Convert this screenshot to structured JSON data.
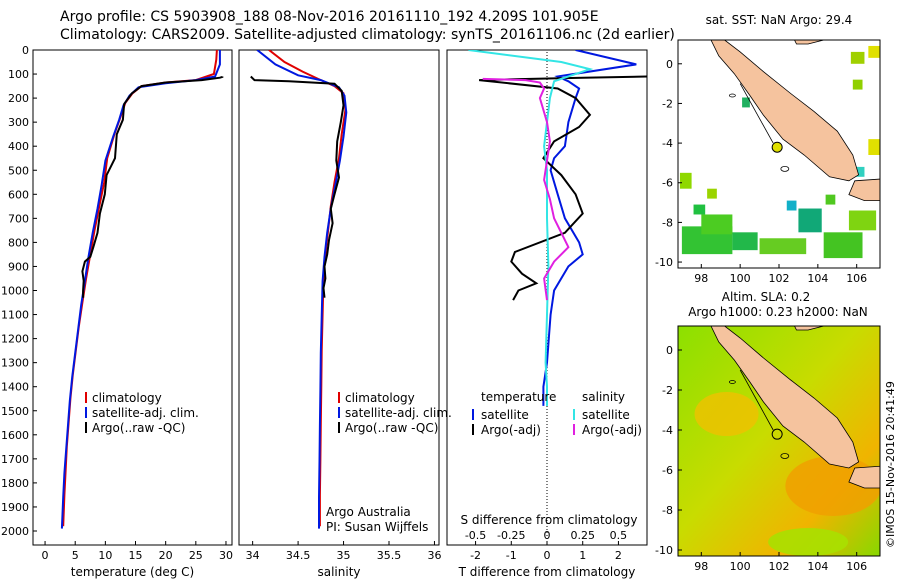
{
  "header": {
    "line1": "Argo profile: CS 5903908_188 08-Nov-2016 20161110_192 4.209S 101.905E",
    "line2": "Climatology: CARS2009. Satellite-adjusted climatology: synTS_20161106.nc (2d earlier)"
  },
  "colors": {
    "climatology": "#e00000",
    "satellite": "#0018e0",
    "argo": "#000000",
    "sal_satellite": "#33e5e5",
    "sal_argo": "#e020e0"
  },
  "chart_data": [
    {
      "type": "line",
      "id": "temperature",
      "xlabel": "temperature (deg C)",
      "ylabel": "",
      "xlim": [
        -2,
        31
      ],
      "ylim": [
        2070,
        0
      ],
      "y_inverted": true,
      "xticks": [
        0,
        5,
        10,
        15,
        20,
        25,
        30
      ],
      "yticks": [
        0,
        100,
        200,
        300,
        400,
        500,
        600,
        700,
        800,
        900,
        1000,
        1100,
        1200,
        1300,
        1400,
        1500,
        1600,
        1700,
        1800,
        1900,
        2000
      ],
      "legend": {
        "placement": "lower-left",
        "entries": [
          "climatology",
          "satellite-adj. clim.",
          "Argo(..raw -QC)"
        ]
      },
      "series": [
        {
          "name": "climatology",
          "color": "#e00000",
          "x": [
            28.5,
            28.4,
            28,
            25,
            20,
            16,
            14.5,
            13.3,
            12.5,
            11.5,
            10.3,
            9.8,
            9.0,
            8.2,
            7.5,
            6.8,
            6.2,
            5.6,
            5.1,
            4.6,
            4.2,
            3.9,
            3.6,
            3.4,
            3.2,
            3.0
          ],
          "y": [
            0,
            40,
            100,
            125,
            135,
            150,
            180,
            220,
            280,
            350,
            450,
            550,
            650,
            750,
            850,
            950,
            1050,
            1150,
            1250,
            1350,
            1450,
            1550,
            1650,
            1750,
            1850,
            1980
          ]
        },
        {
          "name": "satellite-adj. clim.",
          "color": "#0018e0",
          "x": [
            29.0,
            29.0,
            28.2,
            25,
            20,
            15.5,
            14.0,
            13.0,
            12.3,
            11.3,
            10.0,
            9.4,
            8.7,
            7.9,
            7.2,
            6.6,
            6.0,
            5.5,
            5.0,
            4.5,
            4.1,
            3.8,
            3.5,
            3.2,
            3.0,
            2.8
          ],
          "y": [
            0,
            60,
            110,
            125,
            138,
            155,
            190,
            230,
            290,
            360,
            460,
            560,
            660,
            760,
            860,
            960,
            1060,
            1160,
            1260,
            1360,
            1460,
            1560,
            1660,
            1760,
            1860,
            1990
          ]
        },
        {
          "name": "Argo(..raw -QC)",
          "color": "#000000",
          "x": [
            29.4,
            29.4,
            29.0,
            26,
            20,
            16,
            14.4,
            13.1,
            12.9,
            11.9,
            11.6,
            10.2,
            9.9,
            9.1,
            8.7,
            8.0,
            7.5,
            6.6,
            6.2,
            6.4,
            6.3,
            6.3
          ],
          "y": [
            110,
            112,
            115,
            125,
            135,
            150,
            180,
            225,
            290,
            350,
            450,
            520,
            600,
            680,
            760,
            820,
            860,
            880,
            920,
            960,
            1000,
            1030
          ]
        }
      ]
    },
    {
      "type": "line",
      "id": "salinity",
      "xlabel": "salinity",
      "ylabel": "",
      "xlim": [
        33.85,
        36.05
      ],
      "ylim": [
        2070,
        0
      ],
      "y_inverted": true,
      "xticks": [
        34,
        34.5,
        35,
        35.5,
        36
      ],
      "xtick_labels": [
        "34",
        "34.5",
        "35",
        "35.5",
        "36"
      ],
      "legend": {
        "placement": "lower-right",
        "entries": [
          "climatology",
          "satellite-adj. clim.",
          "Argo(..raw -QC)"
        ]
      },
      "annotation": [
        "Argo Australia",
        "PI: Susan Wijffels"
      ],
      "series": [
        {
          "name": "climatology",
          "color": "#e00000",
          "x": [
            34.18,
            34.35,
            34.55,
            34.72,
            34.9,
            35.0,
            35.02,
            34.98,
            34.95,
            34.9,
            34.86,
            34.83,
            34.8,
            34.78,
            34.77,
            34.76,
            34.755,
            34.75,
            34.745,
            34.74,
            34.74
          ],
          "y": [
            0,
            50,
            90,
            120,
            150,
            180,
            250,
            350,
            450,
            550,
            650,
            750,
            850,
            950,
            1100,
            1250,
            1400,
            1550,
            1700,
            1850,
            1980
          ]
        },
        {
          "name": "satellite-adj. clim.",
          "color": "#0018e0",
          "x": [
            34.05,
            34.25,
            34.5,
            34.75,
            34.95,
            35.01,
            35.03,
            35.0,
            34.96,
            34.91,
            34.86,
            34.82,
            34.79,
            34.77,
            34.76,
            34.75,
            34.745,
            34.74,
            34.735,
            34.73,
            34.73
          ],
          "y": [
            0,
            60,
            105,
            125,
            155,
            190,
            260,
            360,
            460,
            560,
            660,
            760,
            860,
            960,
            1110,
            1260,
            1410,
            1560,
            1710,
            1860,
            1990
          ]
        },
        {
          "name": "Argo(..raw -QC)",
          "color": "#000000",
          "x": [
            33.98,
            34.02,
            34.4,
            34.9,
            34.98,
            35.0,
            34.97,
            34.93,
            34.92,
            34.95,
            34.9,
            34.86,
            34.88,
            34.84,
            34.82,
            34.79,
            34.8,
            34.78,
            34.79
          ],
          "y": [
            110,
            125,
            130,
            140,
            170,
            230,
            300,
            380,
            460,
            530,
            600,
            660,
            720,
            790,
            850,
            900,
            950,
            990,
            1030
          ]
        }
      ]
    },
    {
      "type": "line",
      "id": "difference",
      "xlabel": "T difference from climatology",
      "xlabel_top": "S difference from climatology",
      "xlim_T": [
        -2.8,
        2.8
      ],
      "xticks_T": [
        -2,
        -1,
        0,
        1,
        2
      ],
      "xlim_S": [
        -0.7,
        0.7
      ],
      "xticks_S": [
        -0.5,
        -0.25,
        0,
        0.25,
        0.5
      ],
      "xtick_labels_S": [
        "-0.5",
        "-0.25",
        "0",
        "0.25",
        "0.5"
      ],
      "ylim": [
        2070,
        0
      ],
      "y_inverted": true,
      "legend": {
        "placement": "lower-center",
        "groups": [
          {
            "title": "temperature",
            "entries": [
              "satellite",
              "Argo(-adj)"
            ]
          },
          {
            "title": "salinity",
            "entries": [
              "satellite",
              "Argo(-adj)"
            ]
          }
        ]
      },
      "series": [
        {
          "name": "temperature satellite",
          "color": "#0018e0",
          "units": "T",
          "x": [
            0.8,
            2.5,
            0.3,
            0.6,
            0.9,
            0.8,
            0.6,
            0.5,
            0.2,
            0.1,
            0.3,
            0.4,
            0.5,
            0.9,
            1.0,
            0.6,
            0.2,
            0.1,
            0.05,
            0.0,
            -0.1,
            -0.1
          ],
          "y": [
            0,
            60,
            110,
            130,
            160,
            200,
            300,
            400,
            450,
            500,
            600,
            650,
            700,
            800,
            850,
            900,
            1000,
            1100,
            1200,
            1300,
            1400,
            1480
          ]
        },
        {
          "name": "temperature Argo(-adj)",
          "color": "#000000",
          "units": "T",
          "x": [
            2.8,
            1.0,
            -1.9,
            0.3,
            0.8,
            1.2,
            0.9,
            0.2,
            -0.1,
            0.4,
            0.8,
            1.0,
            0.5,
            -0.9,
            -1.0,
            -0.7,
            -0.3,
            -0.8,
            -0.95
          ],
          "y": [
            110,
            115,
            125,
            160,
            200,
            270,
            320,
            380,
            450,
            520,
            600,
            680,
            760,
            840,
            880,
            930,
            970,
            1000,
            1040
          ]
        },
        {
          "name": "salinity satellite",
          "color": "#33e5e5",
          "units": "S",
          "x": [
            -0.55,
            0.1,
            0.3,
            0.05,
            0.02,
            0.0,
            -0.02,
            0.0,
            0.0,
            0.0,
            0.01,
            0.0,
            -0.01,
            0.0,
            0.0
          ],
          "y": [
            0,
            50,
            80,
            130,
            200,
            300,
            400,
            500,
            600,
            700,
            900,
            1100,
            1300,
            1400,
            1480
          ]
        },
        {
          "name": "salinity Argo(-adj)",
          "color": "#e020e0",
          "units": "S",
          "x": [
            -0.45,
            -0.15,
            -0.05,
            -0.02,
            -0.05,
            0.0,
            0.02,
            0.0,
            -0.02,
            0.02,
            0.05,
            0.1,
            0.15,
            0.05,
            -0.02,
            0.0
          ],
          "y": [
            120,
            125,
            135,
            160,
            200,
            300,
            380,
            460,
            540,
            620,
            700,
            760,
            820,
            880,
            950,
            1040
          ]
        }
      ]
    },
    {
      "type": "heatmap",
      "id": "sst_map",
      "title": "sat. SST: NaN Argo: 29.4",
      "xlim": [
        96.8,
        107.2
      ],
      "ylim": [
        -10.3,
        1.2
      ],
      "xticks": [
        98,
        100,
        102,
        104,
        106
      ],
      "yticks": [
        0,
        -2,
        -4,
        -6,
        -8,
        -10
      ],
      "xtick_labels": [
        "98",
        "100",
        "102",
        "104",
        "106"
      ],
      "ytick_labels": [
        "0",
        "-2",
        "-4",
        "-6",
        "-8",
        "-10"
      ],
      "argo_position": [
        101.905,
        -4.209
      ]
    },
    {
      "type": "heatmap",
      "id": "sla_map",
      "title": "Altim. SLA: 0.2",
      "subtitle": "Argo h1000: 0.23 h2000: NaN",
      "xlim": [
        96.8,
        107.2
      ],
      "ylim": [
        -10.3,
        1.2
      ],
      "xticks": [
        98,
        100,
        102,
        104,
        106
      ],
      "yticks": [
        0,
        -2,
        -4,
        -6,
        -8,
        -10
      ],
      "xtick_labels": [
        "98",
        "100",
        "102",
        "104",
        "106"
      ],
      "ytick_labels": [
        "0",
        "-2",
        "-4",
        "-6",
        "-8",
        "-10"
      ],
      "argo_position": [
        101.905,
        -4.209
      ]
    }
  ],
  "footer": {
    "stamp": "©IMOS 15-Nov-2016 20:41:49"
  }
}
